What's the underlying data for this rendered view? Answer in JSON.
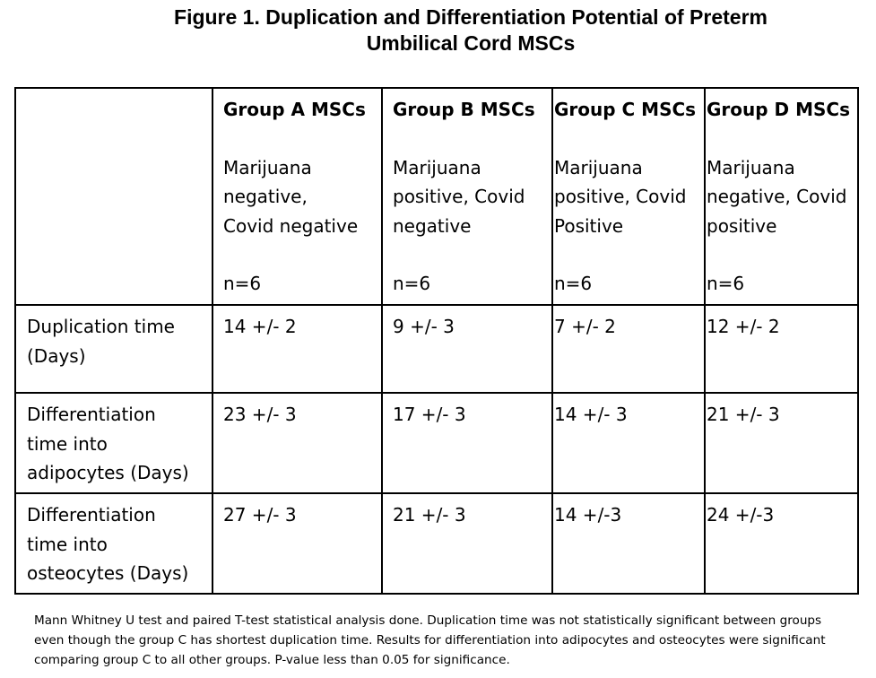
{
  "figure": {
    "title": "Figure 1. Duplication and Differentiation Potential of Preterm\nUmbilical Cord MSCs"
  },
  "table": {
    "columns": [
      {
        "header": "Group A MSCs",
        "description": "Marijuana\nnegative,\nCovid negative",
        "n": "n=6"
      },
      {
        "header": "Group B MSCs",
        "description": "Marijuana\npositive, Covid\nnegative",
        "n": "n=6"
      },
      {
        "header": "Group C MSCs",
        "description": "Marijuana\npositive, Covid\nPositive",
        "n": "n=6"
      },
      {
        "header": "Group D MSCs",
        "description": "Marijuana\nnegative, Covid\npositive",
        "n": "n=6"
      }
    ],
    "rows": [
      {
        "label": "Duplication time\n(Days)",
        "values": [
          "14 +/- 2",
          "9 +/- 3",
          "7 +/- 2",
          "12 +/- 2"
        ]
      },
      {
        "label": "Differentiation\ntime into\nadipocytes (Days)",
        "values": [
          "23 +/- 3",
          "17 +/- 3",
          "14 +/- 3",
          "21 +/- 3"
        ]
      },
      {
        "label": "Differentiation\ntime into\nosteocytes (Days)",
        "values": [
          "27 +/- 3",
          "21 +/- 3",
          "14 +/-3",
          "24 +/-3"
        ]
      }
    ]
  },
  "footnote": "Mann Whitney U test and paired T-test statistical analysis done. Duplication time was not statistically significant between groups even though the group C has shortest duplication time. Results for differentiation into adipocytes and osteocytes were significant comparing group C to all other groups. P-value less than 0.05 for significance."
}
